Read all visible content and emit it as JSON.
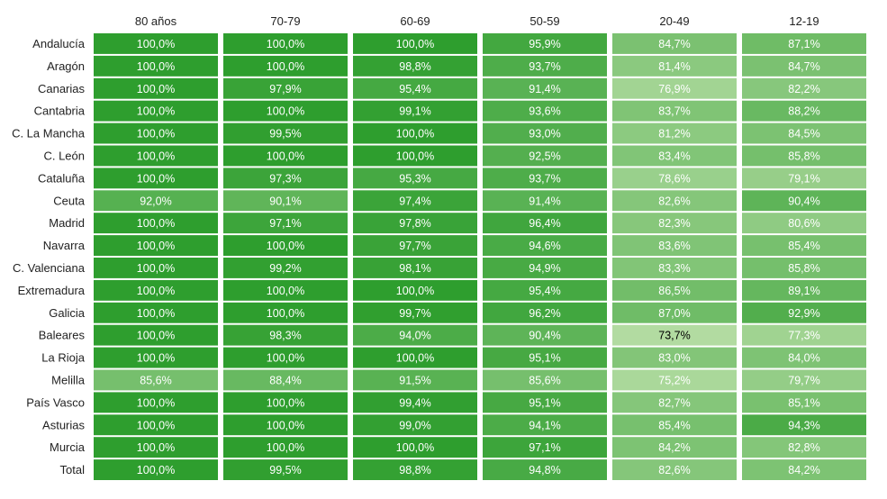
{
  "chart_data": {
    "type": "heatmap",
    "columns": [
      "80 años",
      "70-79",
      "60-69",
      "50-59",
      "20-49",
      "12-19"
    ],
    "rows": [
      {
        "region": "Andalucía",
        "display": [
          "100,0%",
          "100,0%",
          "100,0%",
          "95,9%",
          "84,7%",
          "87,1%"
        ],
        "values": [
          100.0,
          100.0,
          100.0,
          95.9,
          84.7,
          87.1
        ]
      },
      {
        "region": "Aragón",
        "display": [
          "100,0%",
          "100,0%",
          "98,8%",
          "93,7%",
          "81,4%",
          "84,7%"
        ],
        "values": [
          100.0,
          100.0,
          98.8,
          93.7,
          81.4,
          84.7
        ]
      },
      {
        "region": "Canarias",
        "display": [
          "100,0%",
          "97,9%",
          "95,4%",
          "91,4%",
          "76,9%",
          "82,2%"
        ],
        "values": [
          100.0,
          97.9,
          95.4,
          91.4,
          76.9,
          82.2
        ]
      },
      {
        "region": "Cantabria",
        "display": [
          "100,0%",
          "100,0%",
          "99,1%",
          "93,6%",
          "83,7%",
          "88,2%"
        ],
        "values": [
          100.0,
          100.0,
          99.1,
          93.6,
          83.7,
          88.2
        ]
      },
      {
        "region": "C. La Mancha",
        "display": [
          "100,0%",
          "99,5%",
          "100,0%",
          "93,0%",
          "81,2%",
          "84,5%"
        ],
        "values": [
          100.0,
          99.5,
          100.0,
          93.0,
          81.2,
          84.5
        ]
      },
      {
        "region": "C. León",
        "display": [
          "100,0%",
          "100,0%",
          "100,0%",
          "92,5%",
          "83,4%",
          "85,8%"
        ],
        "values": [
          100.0,
          100.0,
          100.0,
          92.5,
          83.4,
          85.8
        ]
      },
      {
        "region": "Cataluña",
        "display": [
          "100,0%",
          "97,3%",
          "95,3%",
          "93,7%",
          "78,6%",
          "79,1%"
        ],
        "values": [
          100.0,
          97.3,
          95.3,
          93.7,
          78.6,
          79.1
        ]
      },
      {
        "region": "Ceuta",
        "display": [
          "92,0%",
          "90,1%",
          "97,4%",
          "91,4%",
          "82,6%",
          "90,4%"
        ],
        "values": [
          92.0,
          90.1,
          97.4,
          91.4,
          82.6,
          90.4
        ]
      },
      {
        "region": "Madrid",
        "display": [
          "100,0%",
          "97,1%",
          "97,8%",
          "96,4%",
          "82,3%",
          "80,6%"
        ],
        "values": [
          100.0,
          97.1,
          97.8,
          96.4,
          82.3,
          80.6
        ]
      },
      {
        "region": "Navarra",
        "display": [
          "100,0%",
          "100,0%",
          "97,7%",
          "94,6%",
          "83,6%",
          "85,4%"
        ],
        "values": [
          100.0,
          100.0,
          97.7,
          94.6,
          83.6,
          85.4
        ]
      },
      {
        "region": "C. Valenciana",
        "display": [
          "100,0%",
          "99,2%",
          "98,1%",
          "94,9%",
          "83,3%",
          "85,8%"
        ],
        "values": [
          100.0,
          99.2,
          98.1,
          94.9,
          83.3,
          85.8
        ]
      },
      {
        "region": "Extremadura",
        "display": [
          "100,0%",
          "100,0%",
          "100,0%",
          "95,4%",
          "86,5%",
          "89,1%"
        ],
        "values": [
          100.0,
          100.0,
          100.0,
          95.4,
          86.5,
          89.1
        ]
      },
      {
        "region": "Galicia",
        "display": [
          "100,0%",
          "100,0%",
          "99,7%",
          "96,2%",
          "87,0%",
          "92,9%"
        ],
        "values": [
          100.0,
          100.0,
          99.7,
          96.2,
          87.0,
          92.9
        ]
      },
      {
        "region": "Baleares",
        "display": [
          "100,0%",
          "98,3%",
          "94,0%",
          "90,4%",
          "73,7%",
          "77,3%"
        ],
        "values": [
          100.0,
          98.3,
          94.0,
          90.4,
          73.7,
          77.3
        ]
      },
      {
        "region": "La Rioja",
        "display": [
          "100,0%",
          "100,0%",
          "100,0%",
          "95,1%",
          "83,0%",
          "84,0%"
        ],
        "values": [
          100.0,
          100.0,
          100.0,
          95.1,
          83.0,
          84.0
        ]
      },
      {
        "region": "Melilla",
        "display": [
          "85,6%",
          "88,4%",
          "91,5%",
          "85,6%",
          "75,2%",
          "79,7%"
        ],
        "values": [
          85.6,
          88.4,
          91.5,
          85.6,
          75.2,
          79.7
        ]
      },
      {
        "region": "País Vasco",
        "display": [
          "100,0%",
          "100,0%",
          "99,4%",
          "95,1%",
          "82,7%",
          "85,1%"
        ],
        "values": [
          100.0,
          100.0,
          99.4,
          95.1,
          82.7,
          85.1
        ]
      },
      {
        "region": "Asturias",
        "display": [
          "100,0%",
          "100,0%",
          "99,0%",
          "94,1%",
          "85,4%",
          "94,3%"
        ],
        "values": [
          100.0,
          100.0,
          99.0,
          94.1,
          85.4,
          94.3
        ]
      },
      {
        "region": "Murcia",
        "display": [
          "100,0%",
          "100,0%",
          "100,0%",
          "97,1%",
          "84,2%",
          "82,8%"
        ],
        "values": [
          100.0,
          100.0,
          100.0,
          97.1,
          84.2,
          82.8
        ]
      },
      {
        "region": "Total",
        "display": [
          "100,0%",
          "99,5%",
          "98,8%",
          "94,8%",
          "82,6%",
          "84,2%"
        ],
        "values": [
          100.0,
          99.5,
          98.8,
          94.8,
          82.6,
          84.2
        ]
      }
    ],
    "color_scale": {
      "low_value": 73.7,
      "high_value": 100.0,
      "low_color": "#b2dba1",
      "high_color": "#2e9e2e",
      "light_text_color": "#ffffff",
      "dark_text_color": "#000000"
    },
    "legend": "none",
    "grid": false
  }
}
